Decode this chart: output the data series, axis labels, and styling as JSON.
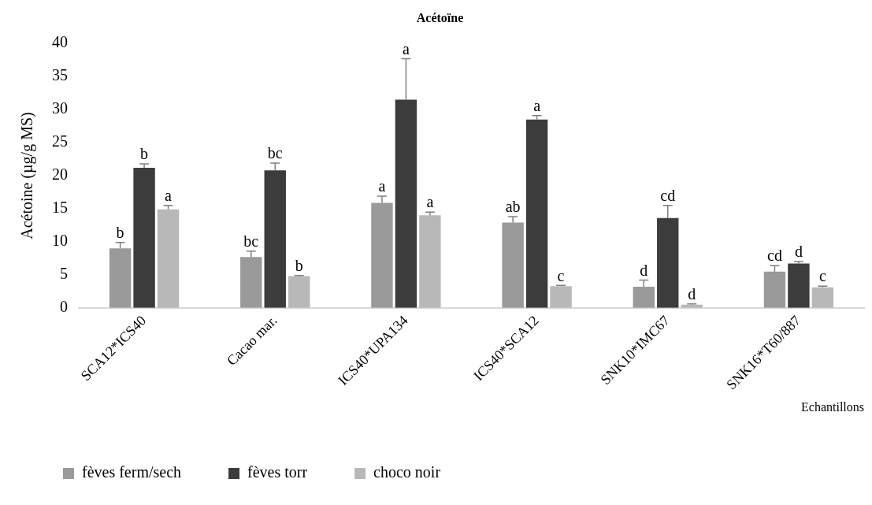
{
  "chart_data": {
    "type": "bar",
    "title": "Acétoïne",
    "xlabel": "Echantillons",
    "ylabel": "Acétoine (µg/g MS)",
    "categories": [
      "SCA12*ICS40",
      "Cacao mar.",
      "ICS40*UPA134",
      "ICS40*SCA12",
      "SNK10*IMC67",
      "SNK16*T60/887"
    ],
    "series": [
      {
        "name": "fèves ferm/sech",
        "color": "#9a9a9a",
        "values": [
          9.0,
          7.7,
          15.9,
          12.9,
          3.2,
          5.5
        ],
        "errors": [
          [
            9.0,
            9.9
          ],
          [
            7.7,
            8.6
          ],
          [
            15.9,
            16.9
          ],
          [
            12.9,
            13.8
          ],
          [
            3.2,
            4.2
          ],
          [
            5.5,
            6.4
          ]
        ],
        "value_labels": [
          "b",
          "bc",
          "a",
          "ab",
          "d",
          "cd"
        ]
      },
      {
        "name": "fèves torr",
        "color": "#3c3c3c",
        "values": [
          21.2,
          20.8,
          31.5,
          28.5,
          13.6,
          6.7
        ],
        "errors": [
          [
            21.2,
            21.8
          ],
          [
            20.8,
            21.9
          ],
          [
            31.5,
            37.7
          ],
          [
            28.5,
            29.1
          ],
          [
            13.6,
            15.5
          ],
          [
            6.7,
            7.0
          ]
        ],
        "value_labels": [
          "b",
          "bc",
          "a",
          "a",
          "cd",
          "d"
        ]
      },
      {
        "name": "choco noir",
        "color": "#b8b8b8",
        "values": [
          14.9,
          4.8,
          14.0,
          3.3,
          0.5,
          3.1
        ],
        "errors": [
          [
            14.9,
            15.5
          ],
          [
            4.8,
            4.9
          ],
          [
            14.0,
            14.5
          ],
          [
            3.3,
            3.4
          ],
          [
            0.5,
            0.6
          ],
          [
            3.1,
            3.3
          ]
        ],
        "value_labels": [
          "a",
          "b",
          "a",
          "c",
          "d",
          "c"
        ]
      }
    ],
    "ylim": [
      0,
      40
    ],
    "yticks": [
      0,
      5,
      10,
      15,
      20,
      25,
      30,
      35,
      40
    ],
    "grid": false,
    "legend": "bottom"
  }
}
